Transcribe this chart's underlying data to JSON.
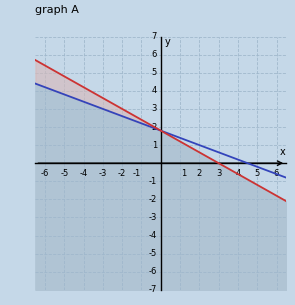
{
  "title": "graph A",
  "xlim": [
    -6.5,
    6.5
  ],
  "ylim": [
    -7,
    7
  ],
  "xticks": [
    -6,
    -5,
    -4,
    -3,
    -2,
    -1,
    1,
    2,
    3,
    4,
    5,
    6
  ],
  "yticks": [
    -7,
    -6,
    -5,
    -4,
    -3,
    -2,
    -1,
    1,
    2,
    3,
    4,
    5,
    6,
    7
  ],
  "background_color": "#c5d8e8",
  "grid_color": "#a0b8cc",
  "line1_color": "#3344bb",
  "line2_color": "#cc3333",
  "shade_main_color": "#b0c4d4",
  "shade_between_color": "#d8b8b8",
  "line1_slope": -0.4,
  "line1_intercept": 1.8,
  "line2_slope": -0.6,
  "line2_intercept": 1.8
}
